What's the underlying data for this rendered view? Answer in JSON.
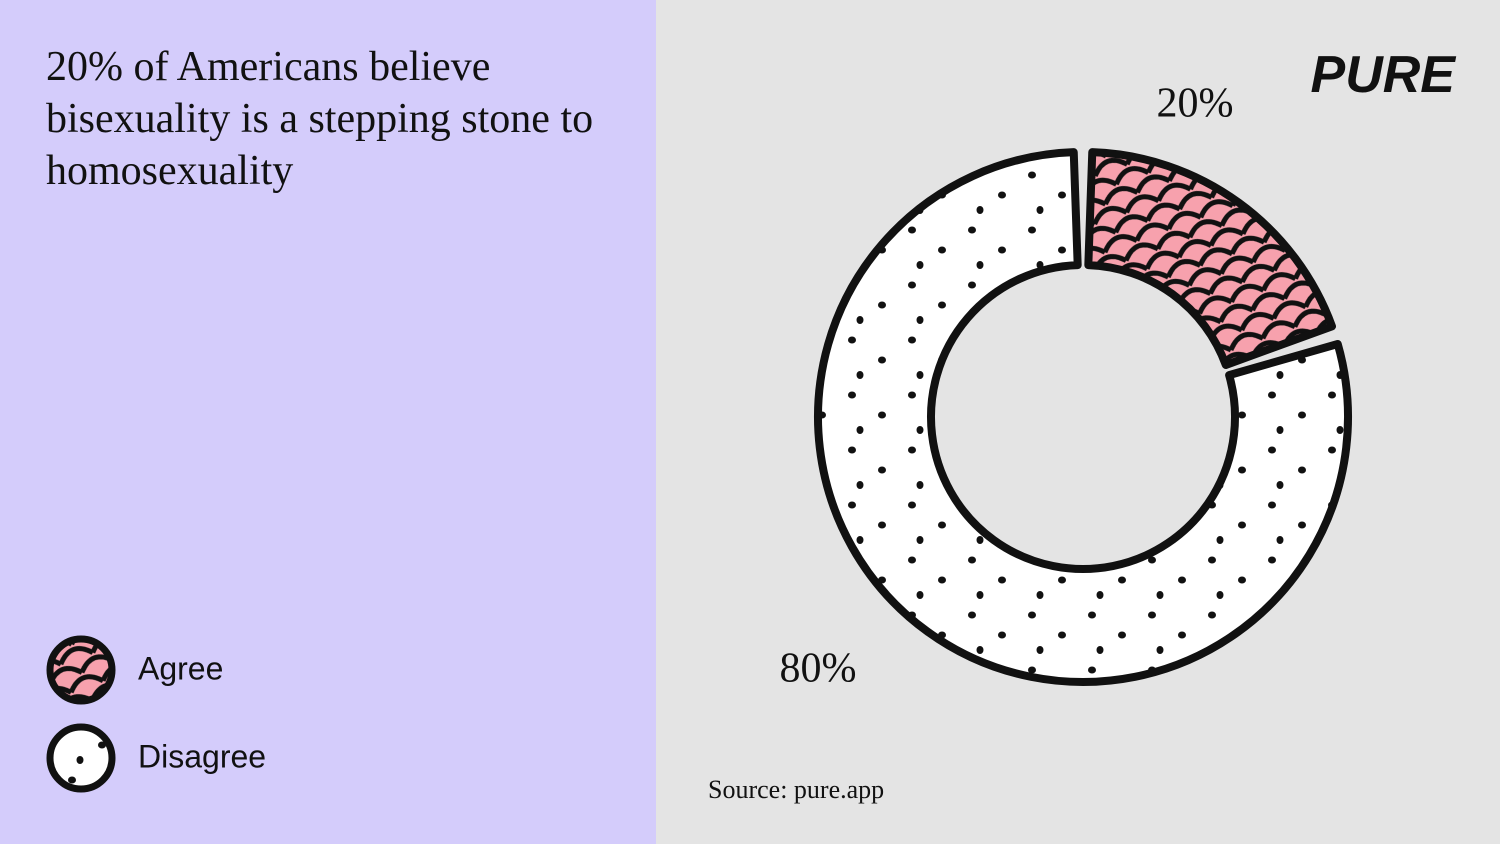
{
  "chart_data": {
    "type": "pie",
    "title": "20% of Americans believe bisexuality is a stepping stone to homosexuality",
    "categories": [
      "Agree",
      "Disagree"
    ],
    "values": [
      20,
      80
    ],
    "value_labels": [
      "20%",
      "80%"
    ],
    "colors": [
      "#f7a1ad",
      "#ffffff"
    ],
    "source": "Source: pure.app",
    "brand": "PURE",
    "legend": "bottom-left"
  }
}
